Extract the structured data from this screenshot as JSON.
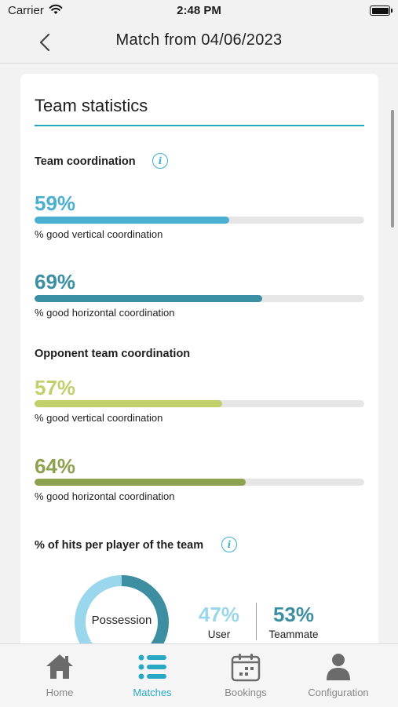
{
  "status_bar": {
    "carrier": "Carrier",
    "time": "2:48 PM"
  },
  "nav": {
    "title": "Match from 04/06/2023"
  },
  "card": {
    "title": "Team statistics",
    "team_coordination": {
      "title": "Team coordination",
      "vertical": {
        "value": "59%",
        "fraction": 0.59,
        "label": "% good vertical coordination",
        "color": "#4bafd2"
      },
      "horizontal": {
        "value": "69%",
        "fraction": 0.69,
        "label": "% good horizontal coordination",
        "color": "#3a8fa4"
      }
    },
    "opponent_coordination": {
      "title": "Opponent team coordination",
      "vertical": {
        "value": "57%",
        "fraction": 0.57,
        "label": "% good vertical coordination",
        "color": "#c2cf6a"
      },
      "horizontal": {
        "value": "64%",
        "fraction": 0.64,
        "label": "% good horizontal coordination",
        "color": "#8da24e"
      }
    },
    "hits": {
      "title": "% of hits per player of the team",
      "donut_label": "Possession",
      "user": {
        "value": "47%",
        "fraction": 0.47,
        "label": "User",
        "color": "#9ad6ec"
      },
      "teammate": {
        "value": "53%",
        "fraction": 0.53,
        "label": "Teammate",
        "color": "#3e8ea2"
      }
    }
  },
  "tabs": [
    {
      "label": "Home",
      "icon": "home-icon",
      "active": false
    },
    {
      "label": "Matches",
      "icon": "list-icon",
      "active": true
    },
    {
      "label": "Bookings",
      "icon": "calendar-icon",
      "active": false
    },
    {
      "label": "Configuration",
      "icon": "person-icon",
      "active": false
    }
  ],
  "colors": {
    "accent": "#28a8c4",
    "inactive": "#6b6b6b"
  }
}
